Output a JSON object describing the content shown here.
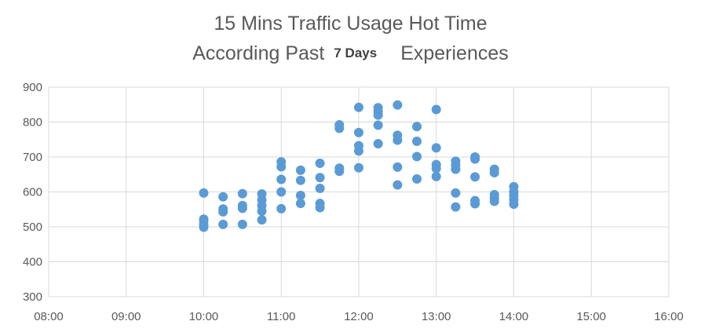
{
  "chart_data": {
    "type": "scatter",
    "title_line1": "15 Mins Traffic Usage Hot Time",
    "title_line2_prefix": "According Past",
    "title_line2_days": "7 Days",
    "title_line2_suffix": "Experiences",
    "xlabel": "",
    "ylabel": "",
    "xlim": [
      "08:00",
      "16:00"
    ],
    "ylim": [
      300,
      900
    ],
    "x_ticks": [
      "08:00",
      "09:00",
      "10:00",
      "11:00",
      "12:00",
      "13:00",
      "14:00",
      "15:00",
      "16:00"
    ],
    "y_ticks": [
      300,
      400,
      500,
      600,
      700,
      800,
      900
    ],
    "grid": true,
    "marker_color": "#5B9BD5",
    "points": [
      {
        "x": "10:00",
        "y": 597
      },
      {
        "x": "10:00",
        "y": 522
      },
      {
        "x": "10:00",
        "y": 518
      },
      {
        "x": "10:00",
        "y": 507
      },
      {
        "x": "10:00",
        "y": 499
      },
      {
        "x": "10:15",
        "y": 586
      },
      {
        "x": "10:15",
        "y": 551
      },
      {
        "x": "10:15",
        "y": 543
      },
      {
        "x": "10:15",
        "y": 507
      },
      {
        "x": "10:30",
        "y": 595
      },
      {
        "x": "10:30",
        "y": 561
      },
      {
        "x": "10:30",
        "y": 553
      },
      {
        "x": "10:30",
        "y": 507
      },
      {
        "x": "10:45",
        "y": 594
      },
      {
        "x": "10:45",
        "y": 577
      },
      {
        "x": "10:45",
        "y": 561
      },
      {
        "x": "10:45",
        "y": 545
      },
      {
        "x": "10:45",
        "y": 520
      },
      {
        "x": "11:00",
        "y": 686
      },
      {
        "x": "11:00",
        "y": 672
      },
      {
        "x": "11:00",
        "y": 636
      },
      {
        "x": "11:00",
        "y": 600
      },
      {
        "x": "11:00",
        "y": 552
      },
      {
        "x": "11:15",
        "y": 662
      },
      {
        "x": "11:15",
        "y": 633
      },
      {
        "x": "11:15",
        "y": 590
      },
      {
        "x": "11:15",
        "y": 567
      },
      {
        "x": "11:30",
        "y": 682
      },
      {
        "x": "11:30",
        "y": 641
      },
      {
        "x": "11:30",
        "y": 610
      },
      {
        "x": "11:30",
        "y": 567
      },
      {
        "x": "11:30",
        "y": 555
      },
      {
        "x": "11:45",
        "y": 792
      },
      {
        "x": "11:45",
        "y": 782
      },
      {
        "x": "11:45",
        "y": 668
      },
      {
        "x": "11:45",
        "y": 659
      },
      {
        "x": "12:00",
        "y": 842
      },
      {
        "x": "12:00",
        "y": 770
      },
      {
        "x": "12:00",
        "y": 732
      },
      {
        "x": "12:00",
        "y": 717
      },
      {
        "x": "12:00",
        "y": 669
      },
      {
        "x": "12:15",
        "y": 841
      },
      {
        "x": "12:15",
        "y": 830
      },
      {
        "x": "12:15",
        "y": 820
      },
      {
        "x": "12:15",
        "y": 791
      },
      {
        "x": "12:15",
        "y": 738
      },
      {
        "x": "12:30",
        "y": 849
      },
      {
        "x": "12:30",
        "y": 762
      },
      {
        "x": "12:30",
        "y": 748
      },
      {
        "x": "12:30",
        "y": 671
      },
      {
        "x": "12:30",
        "y": 620
      },
      {
        "x": "12:45",
        "y": 787
      },
      {
        "x": "12:45",
        "y": 745
      },
      {
        "x": "12:45",
        "y": 701
      },
      {
        "x": "12:45",
        "y": 637
      },
      {
        "x": "13:00",
        "y": 836
      },
      {
        "x": "13:00",
        "y": 726
      },
      {
        "x": "13:00",
        "y": 678
      },
      {
        "x": "13:00",
        "y": 667
      },
      {
        "x": "13:00",
        "y": 644
      },
      {
        "x": "13:15",
        "y": 688
      },
      {
        "x": "13:15",
        "y": 677
      },
      {
        "x": "13:15",
        "y": 665
      },
      {
        "x": "13:15",
        "y": 597
      },
      {
        "x": "13:15",
        "y": 557
      },
      {
        "x": "13:30",
        "y": 700
      },
      {
        "x": "13:30",
        "y": 694
      },
      {
        "x": "13:30",
        "y": 643
      },
      {
        "x": "13:30",
        "y": 575
      },
      {
        "x": "13:30",
        "y": 566
      },
      {
        "x": "13:45",
        "y": 665
      },
      {
        "x": "13:45",
        "y": 655
      },
      {
        "x": "13:45",
        "y": 592
      },
      {
        "x": "13:45",
        "y": 582
      },
      {
        "x": "13:45",
        "y": 573
      },
      {
        "x": "14:00",
        "y": 615
      },
      {
        "x": "14:00",
        "y": 600
      },
      {
        "x": "14:00",
        "y": 590
      },
      {
        "x": "14:00",
        "y": 578
      },
      {
        "x": "14:00",
        "y": 565
      }
    ]
  }
}
